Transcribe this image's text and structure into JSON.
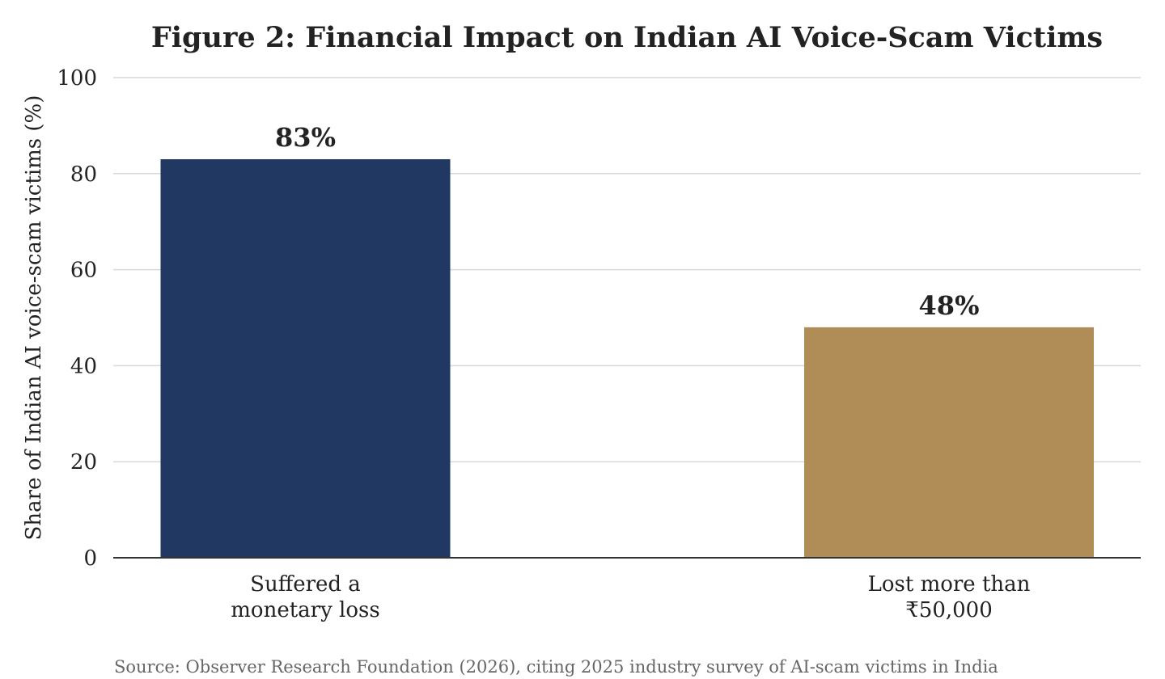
{
  "chart_data": {
    "type": "bar",
    "title": "Figure 2: Financial Impact on Indian AI Voice-Scam Victims",
    "ylabel": "Share of Indian AI voice-scam victims (%)",
    "xlabel": "",
    "categories": [
      [
        "Suffered a",
        "monetary loss"
      ],
      [
        "Lost more than",
        "₹50,000"
      ]
    ],
    "values": [
      83,
      48
    ],
    "data_labels": [
      "83%",
      "48%"
    ],
    "colors": [
      "#213862",
      "#b08d57"
    ],
    "ylim": [
      0,
      100
    ],
    "yticks": [
      0,
      20,
      40,
      60,
      80,
      100
    ],
    "ytick_labels": [
      "0",
      "20",
      "40",
      "60",
      "80",
      "100"
    ],
    "grid": true,
    "legend": "none",
    "source": "Source: Observer Research Foundation (2026), citing 2025 industry survey of AI-scam victims in India"
  }
}
